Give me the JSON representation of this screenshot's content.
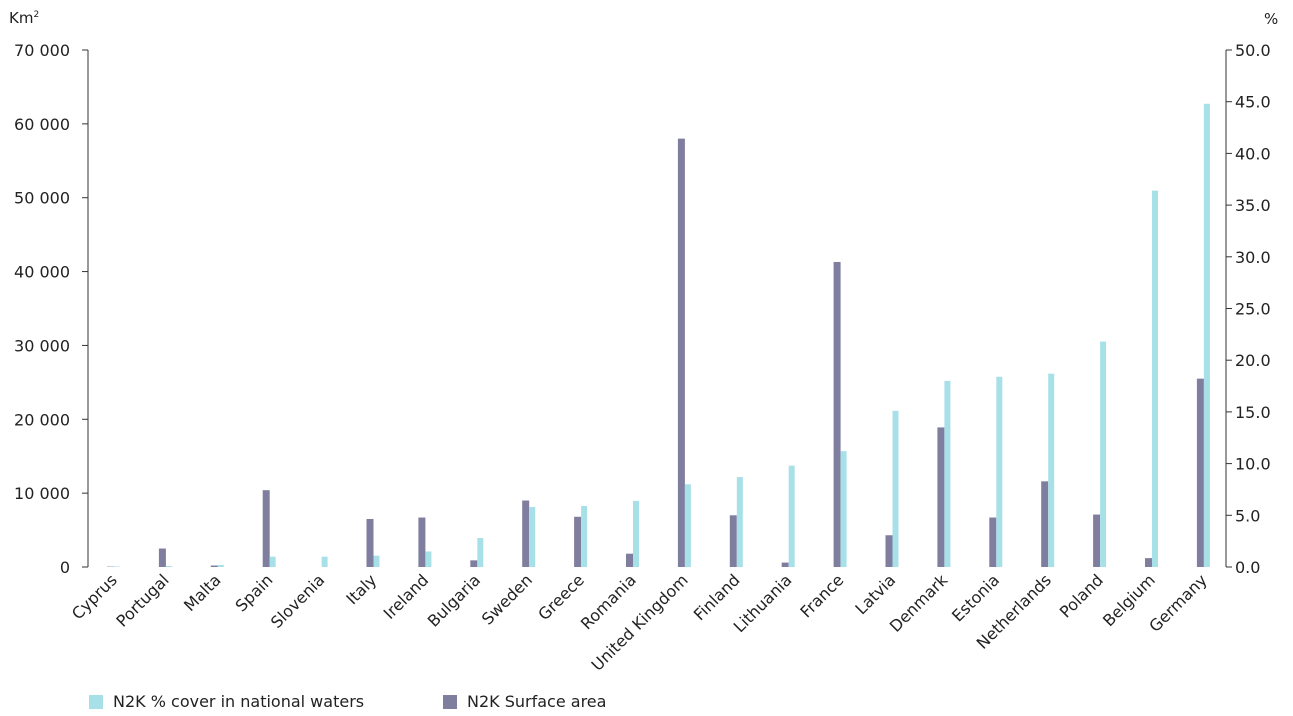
{
  "chart_data": {
    "type": "bar",
    "left_axis_unit": "Km",
    "left_axis_unit_sup": "2",
    "right_axis_unit": "%",
    "categories": [
      "Cyprus",
      "Portugal",
      "Malta",
      "Spain",
      "Slovenia",
      "Italy",
      "Ireland",
      "Bulgaria",
      "Sweden",
      "Greece",
      "Romania",
      "United Kingdom",
      "Finland",
      "Lithuania",
      "France",
      "Latvia",
      "Denmark",
      "Estonia",
      "Netherlands",
      "Poland",
      "Belgium",
      "Germany"
    ],
    "series": [
      {
        "name": "N2K Surface area",
        "axis": "left",
        "color": "#7f7e9f",
        "values": [
          50,
          2500,
          200,
          10400,
          0,
          6500,
          6700,
          900,
          9000,
          6800,
          1800,
          58000,
          7000,
          600,
          41300,
          4300,
          18900,
          6700,
          11600,
          7100,
          1200,
          25500
        ]
      },
      {
        "name": "N2K % cover in national waters",
        "axis": "right",
        "color": "#a8e0e8",
        "values": [
          0.05,
          0.1,
          0.2,
          1.0,
          1.0,
          1.1,
          1.5,
          2.8,
          5.8,
          5.9,
          6.4,
          8.0,
          8.7,
          9.8,
          11.2,
          15.1,
          18.0,
          18.4,
          18.7,
          21.8,
          36.4,
          44.8
        ]
      }
    ],
    "y_left": {
      "min": 0,
      "max": 70000,
      "ticks": [
        "0",
        "10 000",
        "20 000",
        "30 000",
        "40 000",
        "50 000",
        "60 000",
        "70 000"
      ]
    },
    "y_right": {
      "min": 0,
      "max": 50,
      "ticks": [
        "0.0",
        "5.0",
        "10.0",
        "15.0",
        "20.0",
        "25.0",
        "30.0",
        "35.0",
        "40.0",
        "45.0",
        "50.0"
      ]
    },
    "grid": false,
    "legend_position": "bottom-left"
  }
}
